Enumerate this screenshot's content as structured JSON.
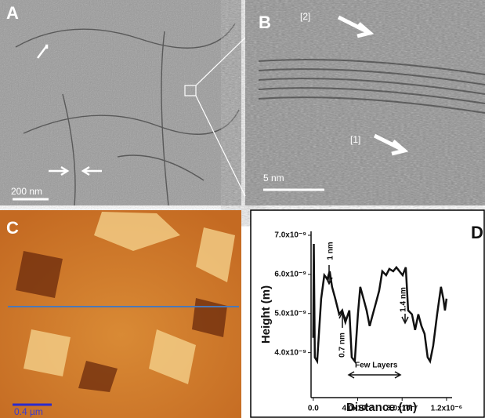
{
  "panels": {
    "a": {
      "label": "A",
      "scale_bar": "200 nm"
    },
    "b": {
      "label": "B",
      "markers": [
        "[2]",
        "[1]"
      ],
      "scale_bar": "5 nm"
    },
    "c": {
      "label": "C",
      "scale_bar": "0.4 µm"
    },
    "d": {
      "label": "D"
    }
  },
  "chart_data": {
    "type": "line",
    "xlabel": "Distance (m)",
    "ylabel": "Height (m)",
    "xlim": [
      -2e-08,
      1.25e-06
    ],
    "ylim": [
      2.85e-09,
      7.1e-09
    ],
    "xticks": [
      {
        "value": 0,
        "label": "0.0"
      },
      {
        "value": 4e-07,
        "label": "4.0x10⁻⁷"
      },
      {
        "value": 8e-07,
        "label": "8.0x10⁻⁷"
      },
      {
        "value": 1.2e-06,
        "label": "1.2x10⁻⁶"
      }
    ],
    "yticks": [
      {
        "value": 4e-09,
        "label": "4.0x10⁻⁹"
      },
      {
        "value": 5e-09,
        "label": "5.0x10⁻⁹"
      },
      {
        "value": 6e-09,
        "label": "6.0x10⁻⁹"
      },
      {
        "value": 7e-09,
        "label": "7.0x10⁻⁹"
      }
    ],
    "annotations": [
      "1 nm",
      "0.7 nm",
      "1.4 nm",
      "Few Layers"
    ],
    "color": "#111111",
    "series": [
      {
        "x": [
          0,
          5e-09,
          1.4e-08,
          3.5e-08,
          7.1e-08,
          9.9e-08,
          1.27e-07,
          1.48e-07,
          1.69e-07,
          1.98e-07,
          2.33e-07,
          2.61e-07,
          2.89e-07,
          3.25e-07,
          3.46e-07,
          3.74e-07,
          4.02e-07,
          4.23e-07,
          4.52e-07,
          4.8e-07,
          5.08e-07,
          5.36e-07,
          5.65e-07,
          5.93e-07,
          6.21e-07,
          6.56e-07,
          6.85e-07,
          7.2e-07,
          7.48e-07,
          7.76e-07,
          8.05e-07,
          8.33e-07,
          8.54e-07,
          8.89e-07,
          9.17e-07,
          9.46e-07,
          9.74e-07,
          1.002e-06,
          1.03e-06,
          1.052e-06,
          1.08e-06,
          1.115e-06,
          1.15e-06,
          1.171e-06,
          1.186e-06,
          1.2e-06
        ],
        "values": [
          4.38e-09,
          6.78e-09,
          3.88e-09,
          3.78e-09,
          5.38e-09,
          5.98e-09,
          5.88e-09,
          6.08e-09,
          5.68e-09,
          5.38e-09,
          4.98e-09,
          5.08e-09,
          4.78e-09,
          5.08e-09,
          3.88e-09,
          3.78e-09,
          4.98e-09,
          5.68e-09,
          5.38e-09,
          5.08e-09,
          4.68e-09,
          4.98e-09,
          5.28e-09,
          5.58e-09,
          6.08e-09,
          5.98e-09,
          6.14e-09,
          6.08e-09,
          6.18e-09,
          6.08e-09,
          5.98e-09,
          6.18e-09,
          5.08e-09,
          4.98e-09,
          4.58e-09,
          4.98e-09,
          4.68e-09,
          4.48e-09,
          3.88e-09,
          3.78e-09,
          4.18e-09,
          4.98e-09,
          5.68e-09,
          5.38e-09,
          5.08e-09,
          5.38e-09
        ]
      }
    ]
  }
}
